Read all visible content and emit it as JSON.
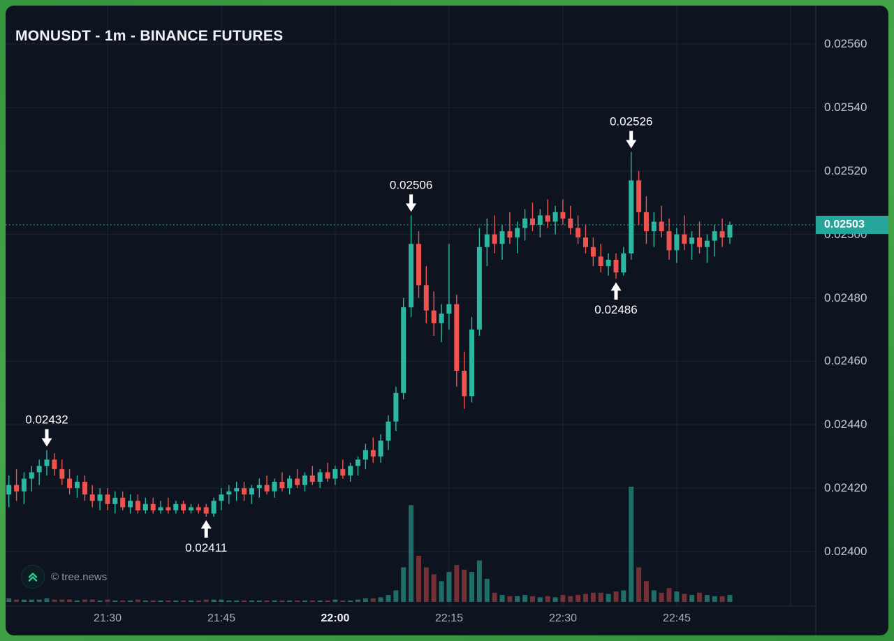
{
  "header": {
    "title": "MONUSDT - 1m - BINANCE FUTURES"
  },
  "watermark": {
    "text": "© tree.news",
    "logo": "double-chevron-up-icon"
  },
  "price_scale": {
    "ticks": [
      "0.02560",
      "0.02540",
      "0.02520",
      "0.02500",
      "0.02480",
      "0.02460",
      "0.02440",
      "0.02420",
      "0.02400"
    ],
    "last_price_label": "0.02503"
  },
  "time_scale": {
    "ticks": [
      {
        "label": "21:30",
        "candle_index": 13
      },
      {
        "label": "21:45",
        "candle_index": 28
      },
      {
        "label": "22:00",
        "candle_index": 43
      },
      {
        "label": "22:15",
        "candle_index": 58
      },
      {
        "label": "22:30",
        "candle_index": 73
      },
      {
        "label": "22:45",
        "candle_index": 88
      }
    ],
    "bold_label": "22:00",
    "extra_gridline_index": 103
  },
  "colors": {
    "background": "#0e141f",
    "frame_green": "#3c9e43",
    "grid": "#1c2433",
    "up": "#2cb7a0",
    "down": "#ef5350",
    "vol_up": "rgba(44,183,160,0.55)",
    "vol_down": "rgba(239,83,80,0.45)",
    "axis_border": "#2a2e39",
    "badge_bg": "#26a69a",
    "badge_text": "#ffffff",
    "annotation": "#ffffff",
    "logo_green": "#30cc8e"
  },
  "chart_data": {
    "type": "candlestick",
    "symbol": "MONUSDT",
    "interval": "1m",
    "exchange": "BINANCE FUTURES",
    "title": "MONUSDT - 1m - BINANCE FUTURES",
    "start_time": "21:17",
    "interval_minutes": 1,
    "visible_price_range": [
      0.024,
      0.0256
    ],
    "last_price": 0.02503,
    "legend": "candles are [open, high, low, close, volume]",
    "candles": [
      [
        0.02418,
        0.02424,
        0.02414,
        0.02421,
        3
      ],
      [
        0.02421,
        0.02426,
        0.02416,
        0.02419,
        2
      ],
      [
        0.02419,
        0.02425,
        0.02415,
        0.02423,
        2
      ],
      [
        0.02423,
        0.02427,
        0.02419,
        0.02425,
        2
      ],
      [
        0.02425,
        0.02429,
        0.02421,
        0.02427,
        2
      ],
      [
        0.02427,
        0.02432,
        0.02424,
        0.02429,
        3
      ],
      [
        0.02429,
        0.02431,
        0.02424,
        0.02426,
        2
      ],
      [
        0.02426,
        0.02429,
        0.02421,
        0.02423,
        2
      ],
      [
        0.02423,
        0.02426,
        0.02418,
        0.0242,
        2
      ],
      [
        0.0242,
        0.02424,
        0.02417,
        0.02422,
        1
      ],
      [
        0.02422,
        0.02424,
        0.02416,
        0.02418,
        2
      ],
      [
        0.02418,
        0.02421,
        0.02414,
        0.02416,
        2
      ],
      [
        0.02416,
        0.0242,
        0.02413,
        0.02418,
        1
      ],
      [
        0.02418,
        0.0242,
        0.02413,
        0.02415,
        2
      ],
      [
        0.02415,
        0.02419,
        0.02412,
        0.02417,
        1
      ],
      [
        0.02417,
        0.02419,
        0.02413,
        0.02414,
        1
      ],
      [
        0.02414,
        0.02418,
        0.02412,
        0.02416,
        1
      ],
      [
        0.02416,
        0.02418,
        0.02412,
        0.02413,
        2
      ],
      [
        0.02413,
        0.02417,
        0.02412,
        0.02415,
        1
      ],
      [
        0.02415,
        0.02417,
        0.02412,
        0.02413,
        1
      ],
      [
        0.02413,
        0.02416,
        0.02412,
        0.02414,
        1
      ],
      [
        0.02414,
        0.02417,
        0.02412,
        0.02413,
        1
      ],
      [
        0.02413,
        0.02416,
        0.02412,
        0.02415,
        1
      ],
      [
        0.02415,
        0.02416,
        0.02412,
        0.02413,
        1
      ],
      [
        0.02413,
        0.02415,
        0.02412,
        0.02414,
        1
      ],
      [
        0.02414,
        0.02415,
        0.02412,
        0.02413,
        1
      ],
      [
        0.02414,
        0.02415,
        0.02411,
        0.02412,
        2
      ],
      [
        0.02412,
        0.02417,
        0.02411,
        0.02416,
        2
      ],
      [
        0.02416,
        0.0242,
        0.02413,
        0.02418,
        2
      ],
      [
        0.02418,
        0.02421,
        0.02415,
        0.02419,
        1
      ],
      [
        0.02419,
        0.02422,
        0.02416,
        0.0242,
        1
      ],
      [
        0.0242,
        0.02422,
        0.02416,
        0.02418,
        1
      ],
      [
        0.02418,
        0.02421,
        0.02415,
        0.0242,
        1
      ],
      [
        0.0242,
        0.02423,
        0.02417,
        0.02421,
        1
      ],
      [
        0.02421,
        0.02424,
        0.02418,
        0.02419,
        1
      ],
      [
        0.02419,
        0.02423,
        0.02417,
        0.02422,
        1
      ],
      [
        0.02422,
        0.02425,
        0.02419,
        0.0242,
        1
      ],
      [
        0.0242,
        0.02424,
        0.02418,
        0.02423,
        1
      ],
      [
        0.02423,
        0.02426,
        0.0242,
        0.02421,
        1
      ],
      [
        0.02421,
        0.02425,
        0.02419,
        0.02424,
        1
      ],
      [
        0.02424,
        0.02427,
        0.02421,
        0.02422,
        1
      ],
      [
        0.02422,
        0.02426,
        0.0242,
        0.02425,
        1
      ],
      [
        0.02425,
        0.02428,
        0.02422,
        0.02423,
        1
      ],
      [
        0.02423,
        0.02427,
        0.02421,
        0.02426,
        2
      ],
      [
        0.02426,
        0.02429,
        0.02423,
        0.02424,
        1
      ],
      [
        0.02424,
        0.02428,
        0.02422,
        0.02427,
        1
      ],
      [
        0.02427,
        0.0243,
        0.02424,
        0.02429,
        2
      ],
      [
        0.02429,
        0.02434,
        0.02426,
        0.02432,
        3
      ],
      [
        0.02432,
        0.02436,
        0.02428,
        0.0243,
        3
      ],
      [
        0.0243,
        0.02437,
        0.02428,
        0.02435,
        4
      ],
      [
        0.02435,
        0.02443,
        0.02432,
        0.02441,
        6
      ],
      [
        0.02441,
        0.02452,
        0.02438,
        0.0245,
        10
      ],
      [
        0.0245,
        0.0248,
        0.02448,
        0.02477,
        30
      ],
      [
        0.02477,
        0.02506,
        0.02474,
        0.02497,
        84
      ],
      [
        0.02497,
        0.02501,
        0.0248,
        0.02484,
        40
      ],
      [
        0.02484,
        0.0249,
        0.02472,
        0.02476,
        30
      ],
      [
        0.02476,
        0.02482,
        0.02468,
        0.02472,
        24
      ],
      [
        0.02472,
        0.02478,
        0.02466,
        0.02475,
        18
      ],
      [
        0.02475,
        0.02497,
        0.0247,
        0.02478,
        26
      ],
      [
        0.02478,
        0.02481,
        0.02452,
        0.02457,
        32
      ],
      [
        0.02457,
        0.02463,
        0.02445,
        0.02449,
        28
      ],
      [
        0.02449,
        0.02474,
        0.02447,
        0.0247,
        26
      ],
      [
        0.0247,
        0.02502,
        0.02468,
        0.02496,
        36
      ],
      [
        0.02496,
        0.02505,
        0.0249,
        0.025,
        20
      ],
      [
        0.025,
        0.02506,
        0.02494,
        0.02497,
        8
      ],
      [
        0.02497,
        0.02503,
        0.02492,
        0.02501,
        6
      ],
      [
        0.02501,
        0.02507,
        0.02497,
        0.02499,
        5
      ],
      [
        0.02499,
        0.02504,
        0.02494,
        0.02502,
        5
      ],
      [
        0.02502,
        0.02508,
        0.02498,
        0.02505,
        6
      ],
      [
        0.02505,
        0.0251,
        0.02501,
        0.02503,
        5
      ],
      [
        0.02503,
        0.02508,
        0.02499,
        0.02506,
        4
      ],
      [
        0.02506,
        0.02511,
        0.02502,
        0.02504,
        5
      ],
      [
        0.02504,
        0.02509,
        0.025,
        0.02507,
        4
      ],
      [
        0.02507,
        0.02511,
        0.02503,
        0.02505,
        6
      ],
      [
        0.02505,
        0.02509,
        0.025,
        0.02502,
        5
      ],
      [
        0.02502,
        0.02506,
        0.02497,
        0.02499,
        6
      ],
      [
        0.02499,
        0.02503,
        0.02494,
        0.02496,
        7
      ],
      [
        0.02496,
        0.02499,
        0.0249,
        0.02493,
        8
      ],
      [
        0.02493,
        0.02497,
        0.02488,
        0.0249,
        8
      ],
      [
        0.0249,
        0.02494,
        0.02487,
        0.02492,
        7
      ],
      [
        0.02492,
        0.02494,
        0.02486,
        0.02488,
        9
      ],
      [
        0.02488,
        0.02496,
        0.02487,
        0.02494,
        10
      ],
      [
        0.02494,
        0.02526,
        0.02492,
        0.02517,
        100
      ],
      [
        0.02517,
        0.0252,
        0.02503,
        0.02507,
        30
      ],
      [
        0.02507,
        0.02512,
        0.02497,
        0.02501,
        18
      ],
      [
        0.02501,
        0.02507,
        0.02496,
        0.02504,
        10
      ],
      [
        0.02504,
        0.02509,
        0.02499,
        0.02501,
        8
      ],
      [
        0.02501,
        0.02505,
        0.02492,
        0.02495,
        12
      ],
      [
        0.02495,
        0.02502,
        0.02491,
        0.025,
        9
      ],
      [
        0.025,
        0.02506,
        0.02495,
        0.02497,
        7
      ],
      [
        0.02497,
        0.02501,
        0.02492,
        0.02499,
        6
      ],
      [
        0.02499,
        0.02504,
        0.02494,
        0.02496,
        8
      ],
      [
        0.02496,
        0.025,
        0.02491,
        0.02498,
        6
      ],
      [
        0.02498,
        0.02503,
        0.02493,
        0.02501,
        5
      ],
      [
        0.02501,
        0.02505,
        0.02496,
        0.02499,
        5
      ],
      [
        0.02499,
        0.02504,
        0.02497,
        0.02503,
        6
      ]
    ],
    "annotations": [
      {
        "label": "0.02432",
        "direction": "down",
        "candle_index": 5,
        "price": 0.02432
      },
      {
        "label": "0.02411",
        "direction": "up",
        "candle_index": 26,
        "price": 0.02411
      },
      {
        "label": "0.02506",
        "direction": "down",
        "candle_index": 53,
        "price": 0.02506
      },
      {
        "label": "0.02486",
        "direction": "up",
        "candle_index": 80,
        "price": 0.02486
      },
      {
        "label": "0.02526",
        "direction": "down",
        "candle_index": 82,
        "price": 0.02526
      }
    ]
  }
}
